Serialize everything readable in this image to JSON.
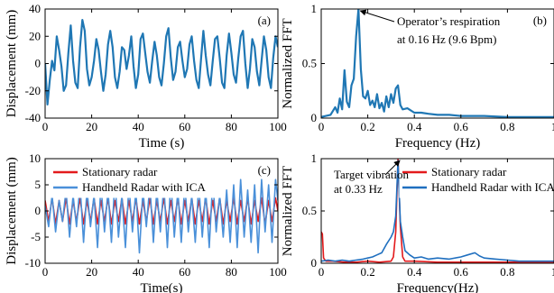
{
  "chart_data": [
    {
      "type": "line",
      "panel_label": "(a)",
      "xlabel": "Time (s)",
      "ylabel": "Displacement (mm)",
      "xlim": [
        0,
        100
      ],
      "ylim": [
        -40,
        40
      ],
      "xticks": [
        0,
        20,
        40,
        60,
        80,
        100
      ],
      "yticks": [
        -40,
        -20,
        0,
        20,
        40
      ],
      "grid": false,
      "series": [
        {
          "color": "#1f77b4",
          "x": [
            0,
            1,
            2,
            3,
            4,
            5,
            6,
            7,
            8,
            9,
            10,
            11,
            12,
            13,
            14,
            15,
            16,
            17,
            18,
            19,
            20,
            21,
            22,
            23,
            24,
            25,
            26,
            27,
            28,
            29,
            30,
            31,
            32,
            33,
            34,
            35,
            36,
            37,
            38,
            39,
            40,
            41,
            42,
            43,
            44,
            45,
            46,
            47,
            48,
            49,
            50,
            51,
            52,
            53,
            54,
            55,
            56,
            57,
            58,
            59,
            60,
            61,
            62,
            63,
            64,
            65,
            66,
            67,
            68,
            69,
            70,
            71,
            72,
            73,
            74,
            75,
            76,
            77,
            78,
            79,
            80,
            81,
            82,
            83,
            84,
            85,
            86,
            87,
            88,
            89,
            90,
            91,
            92,
            93,
            94,
            95,
            96,
            97,
            98,
            99,
            100
          ],
          "y": [
            0,
            -30,
            -12,
            2,
            -5,
            20,
            10,
            -2,
            -20,
            -16,
            8,
            28,
            2,
            -14,
            -18,
            12,
            32,
            24,
            -4,
            -16,
            -10,
            2,
            18,
            10,
            -6,
            -20,
            -8,
            14,
            24,
            12,
            -10,
            -18,
            -6,
            12,
            10,
            -4,
            6,
            20,
            -2,
            -18,
            -8,
            18,
            22,
            8,
            -6,
            -14,
            2,
            16,
            6,
            -10,
            -16,
            0,
            20,
            26,
            4,
            -12,
            -6,
            12,
            16,
            2,
            -10,
            -4,
            14,
            20,
            2,
            -12,
            -18,
            4,
            24,
            6,
            -8,
            -16,
            2,
            18,
            20,
            4,
            -14,
            -18,
            6,
            22,
            8,
            -8,
            -14,
            4,
            20,
            24,
            0,
            -18,
            -4,
            18,
            12,
            -6,
            -16,
            2,
            20,
            10,
            -10,
            -18,
            4,
            20,
            12
          ]
        }
      ]
    },
    {
      "type": "line",
      "panel_label": "(b)",
      "xlabel": "Frequency (Hz)",
      "ylabel": "Normalized FFT",
      "xlim": [
        0,
        1
      ],
      "ylim": [
        0,
        1
      ],
      "xticks": [
        0,
        0.2,
        0.4,
        0.6,
        0.8,
        1
      ],
      "yticks": [
        0,
        0.5,
        1
      ],
      "grid": false,
      "annotation": {
        "line1": "Operator’s respiration",
        "line2": "at 0.16 Hz (9.6 Bpm)",
        "point": [
          0.16,
          1.0
        ],
        "arrow": true
      },
      "series": [
        {
          "color": "#1f77b4",
          "x": [
            0,
            0.02,
            0.04,
            0.06,
            0.07,
            0.08,
            0.09,
            0.1,
            0.11,
            0.12,
            0.13,
            0.14,
            0.15,
            0.16,
            0.17,
            0.18,
            0.19,
            0.2,
            0.21,
            0.22,
            0.23,
            0.24,
            0.25,
            0.26,
            0.27,
            0.28,
            0.29,
            0.3,
            0.31,
            0.32,
            0.33,
            0.34,
            0.35,
            0.37,
            0.4,
            0.43,
            0.46,
            0.5,
            0.55,
            0.6,
            0.65,
            0.7,
            0.8,
            0.9,
            1.0
          ],
          "y": [
            0.01,
            0.02,
            0.03,
            0.1,
            0.05,
            0.18,
            0.08,
            0.44,
            0.15,
            0.1,
            0.3,
            0.36,
            0.75,
            1.0,
            0.45,
            0.2,
            0.18,
            0.25,
            0.12,
            0.16,
            0.1,
            0.22,
            0.09,
            0.14,
            0.06,
            0.2,
            0.1,
            0.22,
            0.14,
            0.27,
            0.3,
            0.12,
            0.08,
            0.09,
            0.05,
            0.05,
            0.04,
            0.03,
            0.03,
            0.02,
            0.02,
            0.02,
            0.01,
            0.01,
            0.01
          ]
        }
      ]
    },
    {
      "type": "line",
      "panel_label": "(c)",
      "xlabel": "Time(s)",
      "ylabel": "Displacement (mm)",
      "xlim": [
        0,
        100
      ],
      "ylim": [
        -10,
        10
      ],
      "xticks": [
        0,
        20,
        40,
        60,
        80,
        100
      ],
      "yticks": [
        -10,
        -5,
        0,
        5,
        10
      ],
      "grid": false,
      "legend": "top-left",
      "series": [
        {
          "name": "Stationary radar",
          "color": "#e31a1c",
          "x": [
            0,
            1.5,
            3,
            4.5,
            6,
            7.5,
            9,
            10.5,
            12,
            13.5,
            15,
            16.5,
            18,
            19.5,
            21,
            22.5,
            24,
            25.5,
            27,
            28.5,
            30,
            31.5,
            33,
            34.5,
            36,
            37.5,
            39,
            40.5,
            42,
            43.5,
            45,
            46.5,
            48,
            49.5,
            51,
            52.5,
            54,
            55.5,
            57,
            58.5,
            60,
            61.5,
            63,
            64.5,
            66,
            67.5,
            69,
            70.5,
            72,
            73.5,
            75,
            76.5,
            78,
            79.5,
            81,
            82.5,
            84,
            85.5,
            87,
            88.5,
            90,
            91.5,
            93,
            94.5,
            96,
            97.5,
            99,
            100
          ],
          "y": [
            2,
            -2,
            2.5,
            -2.5,
            2,
            -2,
            2.5,
            -2.5,
            2,
            -2,
            2.5,
            -2.5,
            2,
            -2,
            2.5,
            -2.5,
            2,
            -2,
            2.5,
            -2.5,
            2,
            -2,
            2.5,
            -2.5,
            2,
            -2,
            2.5,
            -2.5,
            2,
            -2,
            2.5,
            -2.5,
            2,
            -2,
            2.5,
            -2.5,
            2,
            -2,
            2.5,
            -2.5,
            2,
            -2,
            2.5,
            -2.5,
            2,
            -2,
            2.5,
            -2.5,
            2,
            -2,
            2.5,
            -2.5,
            2,
            -2,
            2.5,
            -2.5,
            2,
            -2,
            2.5,
            -2.5,
            2,
            -2,
            2.5,
            -2.5,
            2,
            -2,
            2.5,
            0
          ]
        },
        {
          "name": "Handheld Radar with ICA",
          "color": "#4a90d9",
          "x": [
            0,
            1.5,
            3,
            4.5,
            6,
            7.5,
            9,
            10.5,
            12,
            13.5,
            15,
            16.5,
            18,
            19.5,
            21,
            22.5,
            24,
            25.5,
            27,
            28.5,
            30,
            31.5,
            33,
            34.5,
            36,
            37.5,
            39,
            40.5,
            42,
            43.5,
            45,
            46.5,
            48,
            49.5,
            51,
            52.5,
            54,
            55.5,
            57,
            58.5,
            60,
            61.5,
            63,
            64.5,
            66,
            67.5,
            69,
            70.5,
            72,
            73.5,
            75,
            76.5,
            78,
            79.5,
            81,
            82.5,
            84,
            85.5,
            87,
            88.5,
            90,
            91.5,
            93,
            94.5,
            96,
            97.5,
            99,
            100
          ],
          "y": [
            1,
            -3,
            3,
            -4,
            2,
            -2,
            4,
            -5,
            3,
            -3,
            5,
            -6,
            4,
            -3,
            3,
            -7,
            5,
            -4,
            4,
            -6,
            6,
            -5,
            3,
            -7,
            5,
            -4,
            4,
            -8,
            4,
            -3,
            5,
            -6,
            4,
            -4,
            5,
            -7,
            6,
            -5,
            4,
            -6,
            5,
            -4,
            3,
            -6,
            5,
            -5,
            4,
            -7,
            6,
            -4,
            3,
            -5,
            4,
            -6,
            5,
            -7,
            6,
            -5,
            4,
            -6,
            5,
            -8,
            6,
            -4,
            5,
            -6,
            6,
            2
          ]
        }
      ]
    },
    {
      "type": "line",
      "panel_label": "(d)",
      "xlabel": "Frequency(Hz)",
      "ylabel": "Normalized FFT",
      "xlim": [
        0,
        1
      ],
      "ylim": [
        0,
        1
      ],
      "xticks": [
        0,
        0.2,
        0.4,
        0.6,
        0.8,
        1
      ],
      "yticks": [
        0,
        0.5,
        1
      ],
      "grid": false,
      "legend": "top-right",
      "annotation": {
        "line1": "Target vibration",
        "line2": "at 0.33 Hz",
        "point": [
          0.33,
          1.0
        ],
        "arrow": true
      },
      "series": [
        {
          "name": "Stationary radar",
          "color": "#e31a1c",
          "x": [
            0,
            0.005,
            0.01,
            0.02,
            0.05,
            0.1,
            0.15,
            0.2,
            0.25,
            0.3,
            0.31,
            0.32,
            0.33,
            0.34,
            0.35,
            0.36,
            0.4,
            0.5,
            0.6,
            0.7,
            0.8,
            0.9,
            1.0
          ],
          "y": [
            0.3,
            0.28,
            0.05,
            0.02,
            0.02,
            0.01,
            0.01,
            0.02,
            0.01,
            0.02,
            0.06,
            0.3,
            1.0,
            0.35,
            0.06,
            0.02,
            0.02,
            0.01,
            0.01,
            0.01,
            0.01,
            0.01,
            0.01
          ]
        },
        {
          "name": "Handheld Radar with ICA",
          "color": "#1f6fbf",
          "x": [
            0,
            0.03,
            0.06,
            0.09,
            0.12,
            0.15,
            0.18,
            0.2,
            0.22,
            0.24,
            0.26,
            0.28,
            0.3,
            0.31,
            0.32,
            0.33,
            0.34,
            0.35,
            0.36,
            0.38,
            0.4,
            0.43,
            0.46,
            0.5,
            0.55,
            0.6,
            0.63,
            0.66,
            0.68,
            0.7,
            0.75,
            0.8,
            0.85,
            0.9,
            1.0
          ],
          "y": [
            0.02,
            0.03,
            0.02,
            0.03,
            0.02,
            0.03,
            0.04,
            0.05,
            0.06,
            0.08,
            0.1,
            0.18,
            0.25,
            0.3,
            0.45,
            0.98,
            0.4,
            0.25,
            0.12,
            0.08,
            0.05,
            0.06,
            0.04,
            0.05,
            0.04,
            0.06,
            0.08,
            0.1,
            0.07,
            0.05,
            0.04,
            0.03,
            0.02,
            0.02,
            0.02
          ]
        }
      ]
    }
  ]
}
